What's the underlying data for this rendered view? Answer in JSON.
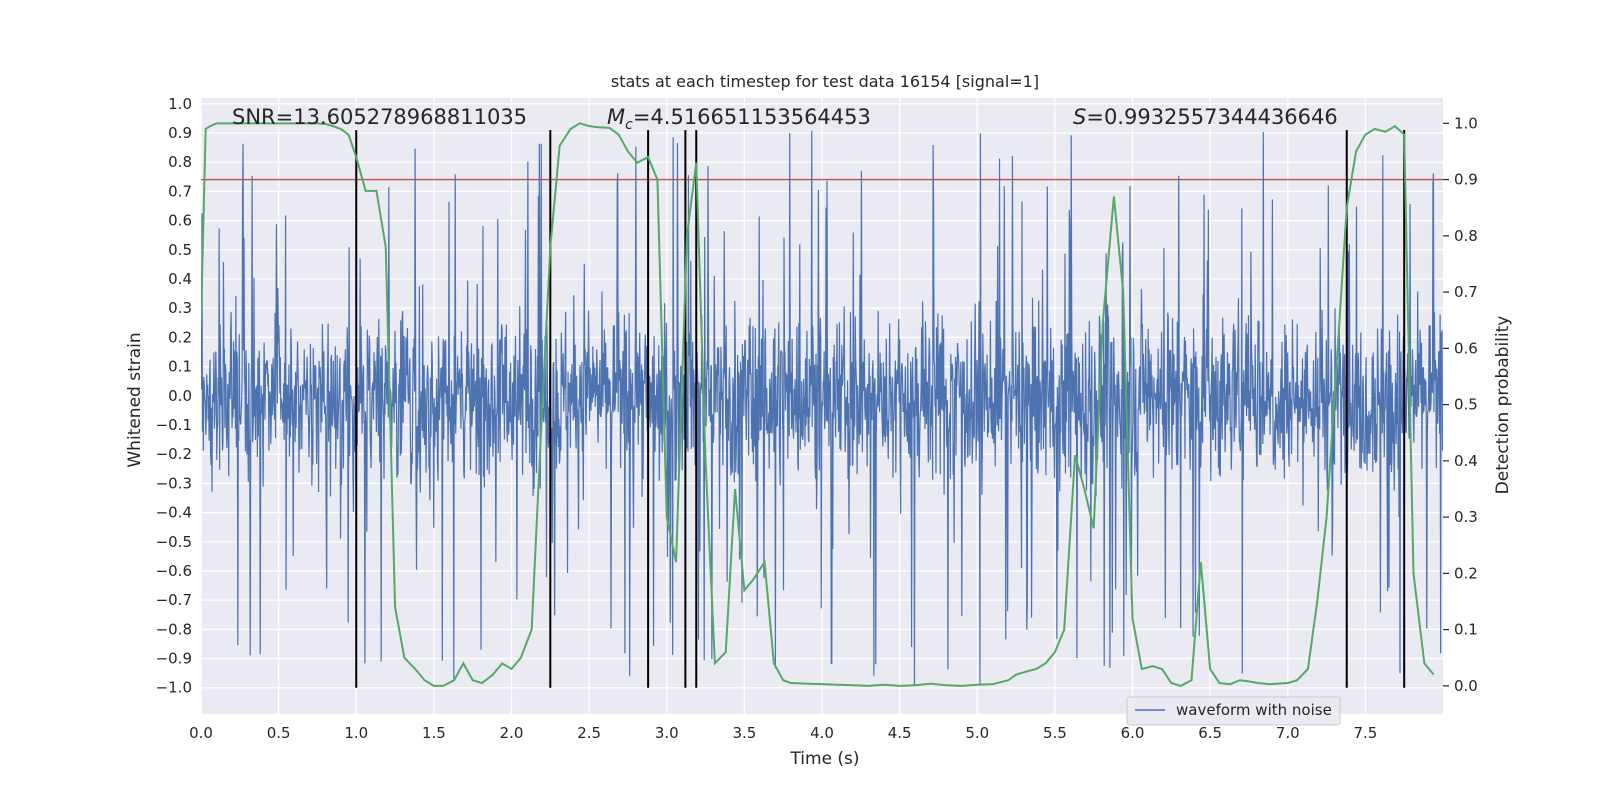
{
  "chart_data": {
    "type": "line",
    "title": "stats at each timestep for test data 16154 [signal=1]",
    "xlabel": "Time (s)",
    "ylabel": "Whitened strain",
    "ylabel_right": "Detection probability",
    "xlim": [
      0.0,
      8.0
    ],
    "ylim": [
      -1.09,
      1.02
    ],
    "ylim_right": [
      -0.05,
      1.045
    ],
    "x_ticks": [
      0.0,
      0.5,
      1.0,
      1.5,
      2.0,
      2.5,
      3.0,
      3.5,
      4.0,
      4.5,
      5.0,
      5.5,
      6.0,
      6.5,
      7.0,
      7.5
    ],
    "x_tick_labels": [
      "0.0",
      "0.5",
      "1.0",
      "1.5",
      "2.0",
      "2.5",
      "3.0",
      "3.5",
      "4.0",
      "4.5",
      "5.0",
      "5.5",
      "6.0",
      "6.5",
      "7.0",
      "7.5"
    ],
    "y_ticks": [
      1.0,
      0.9,
      0.8,
      0.7,
      0.6,
      0.5,
      0.4,
      0.3,
      0.2,
      0.1,
      0.0,
      -0.1,
      -0.2,
      -0.3,
      -0.4,
      -0.5,
      -0.6,
      -0.7,
      -0.8,
      -0.9,
      -1.0
    ],
    "y_tick_labels": [
      "1.0",
      "0.9",
      "0.8",
      "0.7",
      "0.6",
      "0.5",
      "0.4",
      "0.3",
      "0.2",
      "0.1",
      "0.0",
      "−0.1",
      "−0.2",
      "−0.3",
      "−0.4",
      "−0.5",
      "−0.6",
      "−0.7",
      "−0.8",
      "−0.9",
      "−1.0"
    ],
    "y_right_ticks": [
      1.0,
      0.9,
      0.8,
      0.7,
      0.6,
      0.5,
      0.4,
      0.3,
      0.2,
      0.1,
      0.0
    ],
    "y_right_tick_labels": [
      "1.0",
      "0.9",
      "0.8",
      "0.7",
      "0.6",
      "0.5",
      "0.4",
      "0.3",
      "0.2",
      "0.1",
      "0.0"
    ],
    "annotations": {
      "snr": "SNR=13.605278968811035",
      "mc_symbol": "M",
      "mc_subscript": "c",
      "mc_value": "=4.516651153564453",
      "s_symbol": "S",
      "s_value": "=0.9932557344436646"
    },
    "legend": {
      "label": "waveform with noise",
      "position": "lower-right"
    },
    "threshold": {
      "value": 0.9,
      "axis": "right",
      "color": "#c44e52"
    },
    "vlines": [
      1.0,
      2.25,
      2.88,
      3.12,
      3.19,
      7.38,
      7.75
    ],
    "vline_range": [
      -1.0,
      0.91
    ],
    "waveform": {
      "name": "waveform with noise",
      "color": "#4c72b0",
      "duration_s": 8.0,
      "core_amplitude": 0.4,
      "spike_max": 0.92,
      "spike_min": -1.0
    },
    "probability": {
      "name": "detection probability",
      "color": "#55a868",
      "x": [
        0.0,
        0.03,
        0.06,
        0.1,
        0.15,
        0.2,
        0.25,
        0.3,
        0.35,
        0.4,
        0.45,
        0.5,
        0.55,
        0.6,
        0.65,
        0.7,
        0.75,
        0.8,
        0.85,
        0.9,
        0.95,
        1.0,
        1.06,
        1.13,
        1.19,
        1.25,
        1.31,
        1.38,
        1.44,
        1.5,
        1.56,
        1.63,
        1.69,
        1.75,
        1.81,
        1.88,
        1.94,
        2.0,
        2.06,
        2.13,
        2.19,
        2.25,
        2.31,
        2.38,
        2.44,
        2.5,
        2.56,
        2.63,
        2.69,
        2.75,
        2.81,
        2.88,
        2.94,
        3.0,
        3.06,
        3.13,
        3.19,
        3.25,
        3.31,
        3.38,
        3.44,
        3.5,
        3.56,
        3.63,
        3.69,
        3.75,
        3.8,
        3.9,
        4.0,
        4.1,
        4.2,
        4.3,
        4.4,
        4.5,
        4.6,
        4.7,
        4.8,
        4.9,
        5.0,
        5.1,
        5.2,
        5.25,
        5.31,
        5.38,
        5.44,
        5.5,
        5.56,
        5.63,
        5.69,
        5.75,
        5.81,
        5.88,
        5.94,
        6.0,
        6.06,
        6.13,
        6.19,
        6.25,
        6.31,
        6.38,
        6.44,
        6.5,
        6.56,
        6.63,
        6.69,
        6.75,
        6.81,
        6.88,
        6.94,
        7.0,
        7.06,
        7.13,
        7.19,
        7.25,
        7.31,
        7.38,
        7.44,
        7.5,
        7.56,
        7.63,
        7.69,
        7.75,
        7.81,
        7.88,
        7.94
      ],
      "values": [
        0.65,
        0.99,
        0.995,
        1.0,
        1.0,
        1.0,
        1.0,
        1.0,
        1.0,
        1.0,
        1.0,
        1.0,
        1.0,
        1.0,
        1.0,
        1.0,
        1.0,
        0.999,
        0.995,
        0.99,
        0.98,
        0.94,
        0.88,
        0.88,
        0.78,
        0.14,
        0.05,
        0.03,
        0.01,
        0.0,
        0.0,
        0.01,
        0.04,
        0.01,
        0.005,
        0.02,
        0.04,
        0.03,
        0.05,
        0.1,
        0.45,
        0.78,
        0.96,
        0.99,
        1.0,
        0.995,
        0.993,
        0.992,
        0.98,
        0.95,
        0.93,
        0.94,
        0.9,
        0.3,
        0.22,
        0.8,
        0.93,
        0.4,
        0.04,
        0.06,
        0.35,
        0.17,
        0.19,
        0.22,
        0.04,
        0.01,
        0.005,
        0.004,
        0.003,
        0.002,
        0.001,
        0.0,
        0.002,
        0.0,
        0.001,
        0.004,
        0.001,
        0.0,
        0.002,
        0.003,
        0.01,
        0.02,
        0.025,
        0.03,
        0.04,
        0.06,
        0.1,
        0.41,
        0.35,
        0.28,
        0.65,
        0.87,
        0.7,
        0.12,
        0.03,
        0.035,
        0.03,
        0.005,
        0.0,
        0.01,
        0.22,
        0.03,
        0.005,
        0.003,
        0.01,
        0.008,
        0.005,
        0.003,
        0.004,
        0.005,
        0.01,
        0.03,
        0.15,
        0.3,
        0.55,
        0.85,
        0.95,
        0.98,
        0.99,
        0.985,
        0.995,
        0.98,
        0.2,
        0.04,
        0.02
      ]
    }
  }
}
